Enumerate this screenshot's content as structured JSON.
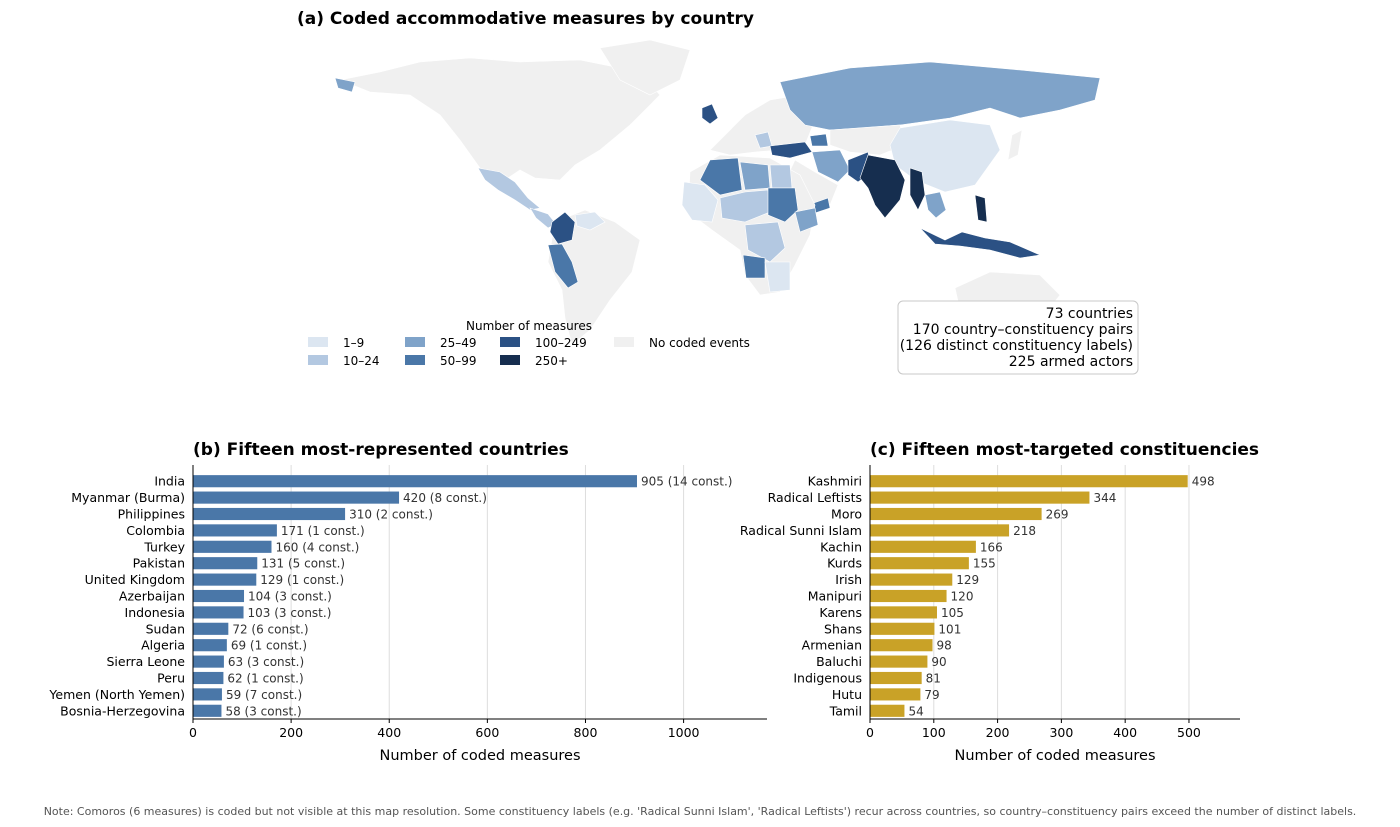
{
  "panel_a": {
    "title": "(a) Coded accommodative measures by country",
    "legend_title": "Number of measures",
    "legend": [
      {
        "label": "1–9",
        "color": "#dce6f1"
      },
      {
        "label": "10–24",
        "color": "#b3c8e1"
      },
      {
        "label": "25–49",
        "color": "#7fa3c9"
      },
      {
        "label": "50–99",
        "color": "#4a77a8"
      },
      {
        "label": "100–249",
        "color": "#2b5184"
      },
      {
        "label": "250+",
        "color": "#162e4f"
      },
      {
        "label": "No coded events",
        "color": "#f0f0f0"
      }
    ],
    "stats": [
      "73 countries",
      "170 country–constituency pairs",
      "(126 distinct constituency labels)",
      "225 armed actors"
    ]
  },
  "chart_data": [
    {
      "type": "bar",
      "orientation": "horizontal",
      "title": "(b) Fifteen most-represented countries",
      "xlabel": "Number of coded measures",
      "xlim": [
        0,
        1170
      ],
      "xticks": [
        0,
        200,
        400,
        600,
        800,
        1000
      ],
      "grid": "vertical",
      "color": "#4a77a8",
      "categories": [
        "India",
        "Myanmar (Burma)",
        "Philippines",
        "Colombia",
        "Turkey",
        "Pakistan",
        "United Kingdom",
        "Azerbaijan",
        "Indonesia",
        "Sudan",
        "Algeria",
        "Sierra Leone",
        "Peru",
        "Yemen (North Yemen)",
        "Bosnia-Herzegovina"
      ],
      "values": [
        905,
        420,
        310,
        171,
        160,
        131,
        129,
        104,
        103,
        72,
        69,
        63,
        62,
        59,
        58
      ],
      "annotations": [
        "905  (14 const.)",
        "420  (8 const.)",
        "310  (2 const.)",
        "171  (1 const.)",
        "160  (4 const.)",
        "131  (5 const.)",
        "129  (1 const.)",
        "104  (3 const.)",
        "103  (3 const.)",
        "72  (6 const.)",
        "69  (1 const.)",
        "63  (3 const.)",
        "62  (1 const.)",
        "59  (7 const.)",
        "58  (3 const.)"
      ]
    },
    {
      "type": "bar",
      "orientation": "horizontal",
      "title": "(c) Fifteen most-targeted constituencies",
      "xlabel": "Number of coded measures",
      "xlim": [
        0,
        580
      ],
      "xticks": [
        0,
        100,
        200,
        300,
        400,
        500
      ],
      "grid": "vertical",
      "color": "#c9a227",
      "categories": [
        "Kashmiri",
        "Radical Leftists",
        "Moro",
        "Radical Sunni Islam",
        "Kachin",
        "Kurds",
        "Irish",
        "Manipuri",
        "Karens",
        "Shans",
        "Armenian",
        "Baluchi",
        "Indigenous",
        "Hutu",
        "Tamil"
      ],
      "values": [
        498,
        344,
        269,
        218,
        166,
        155,
        129,
        120,
        105,
        101,
        98,
        90,
        81,
        79,
        54
      ],
      "annotations": [
        "498",
        "344",
        "269",
        "218",
        "166",
        "155",
        "129",
        "120",
        "105",
        "101",
        "98",
        "90",
        "81",
        "79",
        "54"
      ]
    }
  ],
  "note": "Note: Comoros (6 measures) is coded but not visible at this map resolution. Some constituency labels (e.g. 'Radical Sunni Islam', 'Radical Leftists') recur across countries, so country–constituency pairs exceed the number of distinct labels."
}
